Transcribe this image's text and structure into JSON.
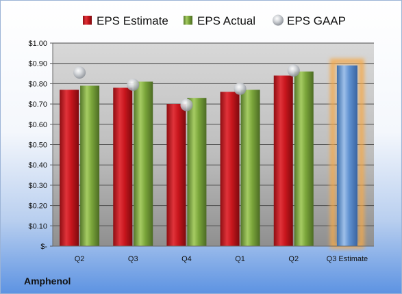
{
  "company": "Amphenol",
  "chart_data": {
    "type": "bar",
    "categories": [
      "Q2",
      "Q3",
      "Q4",
      "Q1",
      "Q2",
      "Q3 Estimate"
    ],
    "series": [
      {
        "name": "EPS Estimate",
        "type": "bar",
        "color": "#c8161d",
        "values": [
          0.77,
          0.78,
          0.7,
          0.76,
          0.84,
          null
        ]
      },
      {
        "name": "EPS Actual",
        "type": "bar",
        "color": "#7aa53a",
        "values": [
          0.79,
          0.81,
          0.73,
          0.77,
          0.86,
          null
        ]
      },
      {
        "name": "EPS GAAP",
        "type": "marker",
        "color": "#b8bcc2",
        "values": [
          0.855,
          0.795,
          0.695,
          0.775,
          0.865,
          null
        ]
      },
      {
        "name": "",
        "type": "bar",
        "color": "#5f91d1",
        "highlight": "#f5a94a",
        "values": [
          null,
          null,
          null,
          null,
          null,
          0.89
        ]
      }
    ],
    "yticks": [
      "$1.00",
      "$0.90",
      "$0.80",
      "$0.70",
      "$0.60",
      "$0.50",
      "$0.40",
      "$0.30",
      "$0.20",
      "$0.10",
      "$-"
    ],
    "ylim": [
      0,
      1.0
    ],
    "grid": true,
    "legend": "top"
  }
}
